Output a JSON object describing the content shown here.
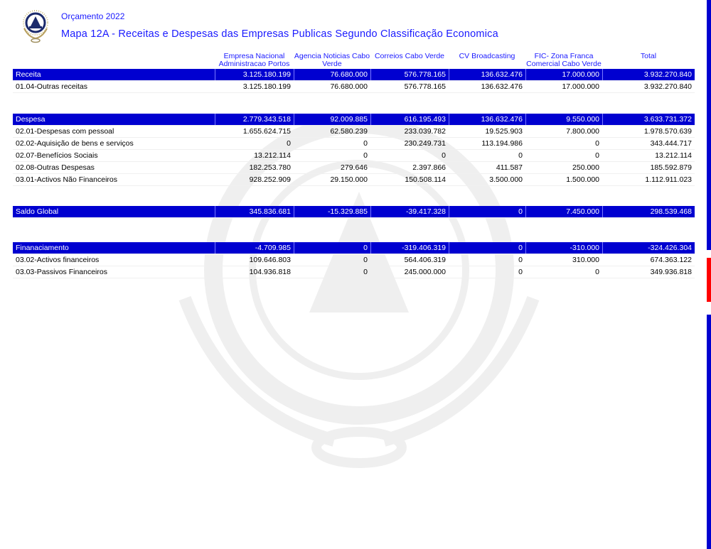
{
  "header": {
    "subtitle": "Orçamento 2022",
    "title": "Mapa 12A - Receitas e Despesas das Empresas Publicas Segundo Classificação Economica"
  },
  "columns": [
    "",
    "Empresa Nacional Administracao Portos",
    "Agencia Noticias Cabo Verde",
    "Correios Cabo Verde",
    "CV Broadcasting",
    "FIC- Zona Franca Comercial Cabo Verde",
    "Total"
  ],
  "sections": [
    {
      "name": "Receita",
      "values": [
        "3.125.180.199",
        "76.680.000",
        "576.778.165",
        "136.632.476",
        "17.000.000",
        "3.932.270.840"
      ],
      "rows": [
        {
          "label": "01.04-Outras receitas",
          "values": [
            "3.125.180.199",
            "76.680.000",
            "576.778.165",
            "136.632.476",
            "17.000.000",
            "3.932.270.840"
          ]
        }
      ]
    },
    {
      "name": "Despesa",
      "values": [
        "2.779.343.518",
        "92.009.885",
        "616.195.493",
        "136.632.476",
        "9.550.000",
        "3.633.731.372"
      ],
      "rows": [
        {
          "label": "02.01-Despesas com pessoal",
          "values": [
            "1.655.624.715",
            "62.580.239",
            "233.039.782",
            "19.525.903",
            "7.800.000",
            "1.978.570.639"
          ]
        },
        {
          "label": "02.02-Aquisição de bens e serviços",
          "values": [
            "0",
            "0",
            "230.249.731",
            "113.194.986",
            "0",
            "343.444.717"
          ]
        },
        {
          "label": "02.07-Benefícios Sociais",
          "values": [
            "13.212.114",
            "0",
            "0",
            "0",
            "0",
            "13.212.114"
          ]
        },
        {
          "label": "02.08-Outras Despesas",
          "values": [
            "182.253.780",
            "279.646",
            "2.397.866",
            "411.587",
            "250.000",
            "185.592.879"
          ]
        },
        {
          "label": "03.01-Activos Não Financeiros",
          "values": [
            "928.252.909",
            "29.150.000",
            "150.508.114",
            "3.500.000",
            "1.500.000",
            "1.112.911.023"
          ]
        }
      ]
    },
    {
      "name": "Saldo Global",
      "values": [
        "345.836.681",
        "-15.329.885",
        "-39.417.328",
        "0",
        "7.450.000",
        "298.539.468"
      ],
      "rows": []
    },
    {
      "name": "Finanaciamento",
      "values": [
        "-4.709.985",
        "0",
        "-319.406.319",
        "0",
        "-310.000",
        "-324.426.304"
      ],
      "rows": [
        {
          "label": "03.02-Activos financeiros",
          "values": [
            "109.646.803",
            "0",
            "564.406.319",
            "0",
            "310.000",
            "674.363.122"
          ]
        },
        {
          "label": "03.03-Passivos Financeiros",
          "values": [
            "104.936.818",
            "0",
            "245.000.000",
            "0",
            "0",
            "349.936.818"
          ]
        }
      ]
    }
  ],
  "colors": {
    "accent": "#0000d0",
    "text_blue": "#1a1aff",
    "side_red": "#ff0000"
  }
}
